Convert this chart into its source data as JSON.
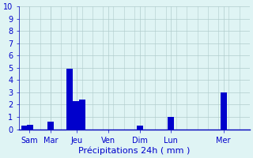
{
  "bar_groups": [
    {
      "day": "Sam",
      "values": [
        0.3,
        0.35
      ],
      "offsets": [
        -0.4,
        0.0
      ]
    },
    {
      "day": "Mar",
      "values": [
        0.6
      ],
      "offsets": [
        0.0
      ]
    },
    {
      "day": "Jeu",
      "values": [
        4.9,
        2.3,
        2.4
      ],
      "offsets": [
        -0.5,
        0.2,
        0.7
      ]
    },
    {
      "day": "Ven",
      "values": [],
      "offsets": []
    },
    {
      "day": "Dim",
      "values": [
        0.3
      ],
      "offsets": [
        0.0
      ]
    },
    {
      "day": "Lun",
      "values": [
        1.0
      ],
      "offsets": [
        0.0
      ]
    },
    {
      "day": "Mer",
      "values": [
        3.0
      ],
      "offsets": [
        0.0
      ]
    }
  ],
  "day_centers": [
    1.0,
    3.0,
    5.5,
    8.5,
    11.5,
    14.5,
    19.5
  ],
  "day_labels": [
    "Sam",
    "Mar",
    "Jeu",
    "Ven",
    "Dim",
    "Lun",
    "Mer"
  ],
  "bar_color": "#0000cc",
  "bar_width": 0.6,
  "ylim": [
    0,
    10
  ],
  "yticks": [
    0,
    1,
    2,
    3,
    4,
    5,
    6,
    7,
    8,
    9,
    10
  ],
  "xlim": [
    0,
    22
  ],
  "xlabel": "Précipitations 24h ( mm )",
  "xlabel_color": "#0000cc",
  "background_color": "#dff4f4",
  "grid_color": "#b0cccc",
  "axis_color": "#0000bb",
  "tick_color": "#0000cc",
  "tick_fontsize": 7,
  "xlabel_fontsize": 8
}
